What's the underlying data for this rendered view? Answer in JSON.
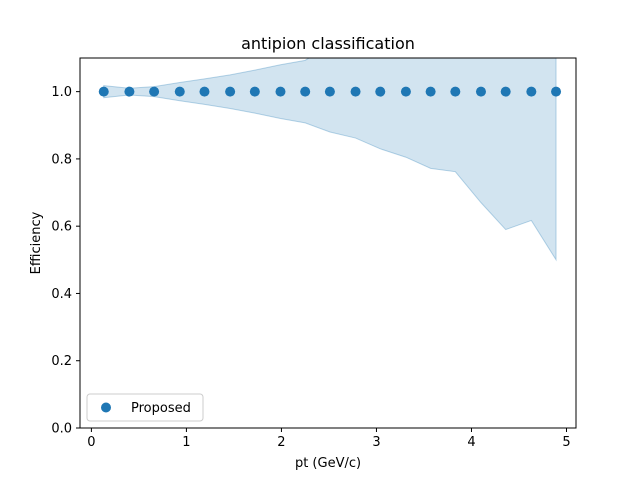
{
  "chart_data": {
    "type": "scatter",
    "title": "antipion classification",
    "xlabel": "pt (GeV/c)",
    "ylabel": "Efficiency",
    "xlim": [
      -0.12,
      5.1
    ],
    "ylim": [
      0.0,
      1.1
    ],
    "xticks": [
      0,
      1,
      2,
      3,
      4,
      5
    ],
    "yticks": [
      0.0,
      0.2,
      0.4,
      0.6,
      0.8,
      1.0
    ],
    "xtick_labels": [
      "0",
      "1",
      "2",
      "3",
      "4",
      "5"
    ],
    "ytick_labels": [
      "0.0",
      "0.2",
      "0.4",
      "0.6",
      "0.8",
      "1.0"
    ],
    "grid": false,
    "legend": {
      "placement": "lower-left",
      "entries": [
        "Proposed"
      ]
    },
    "colors": {
      "series": "#1f77b4",
      "band": "#1f77b4"
    },
    "series": [
      {
        "name": "Proposed",
        "x": [
          0.13,
          0.4,
          0.66,
          0.93,
          1.19,
          1.46,
          1.72,
          1.99,
          2.25,
          2.51,
          2.78,
          3.04,
          3.31,
          3.57,
          3.83,
          4.1,
          4.36,
          4.63,
          4.89
        ],
        "y": [
          1.0,
          1.0,
          1.0,
          1.0,
          1.0,
          1.0,
          1.0,
          1.0,
          1.0,
          1.0,
          1.0,
          1.0,
          1.0,
          1.0,
          1.0,
          1.0,
          1.0,
          1.0,
          1.0
        ],
        "band_upper": [
          1.018,
          1.01,
          1.015,
          1.027,
          1.038,
          1.05,
          1.064,
          1.08,
          1.093,
          1.14,
          1.16,
          1.18,
          1.2,
          1.22,
          1.24,
          1.27,
          1.3,
          1.35,
          1.5
        ],
        "band_lower": [
          0.982,
          0.99,
          0.985,
          0.973,
          0.962,
          0.95,
          0.936,
          0.92,
          0.907,
          0.88,
          0.862,
          0.83,
          0.805,
          0.772,
          0.762,
          0.67,
          0.59,
          0.617,
          0.5
        ]
      }
    ]
  }
}
